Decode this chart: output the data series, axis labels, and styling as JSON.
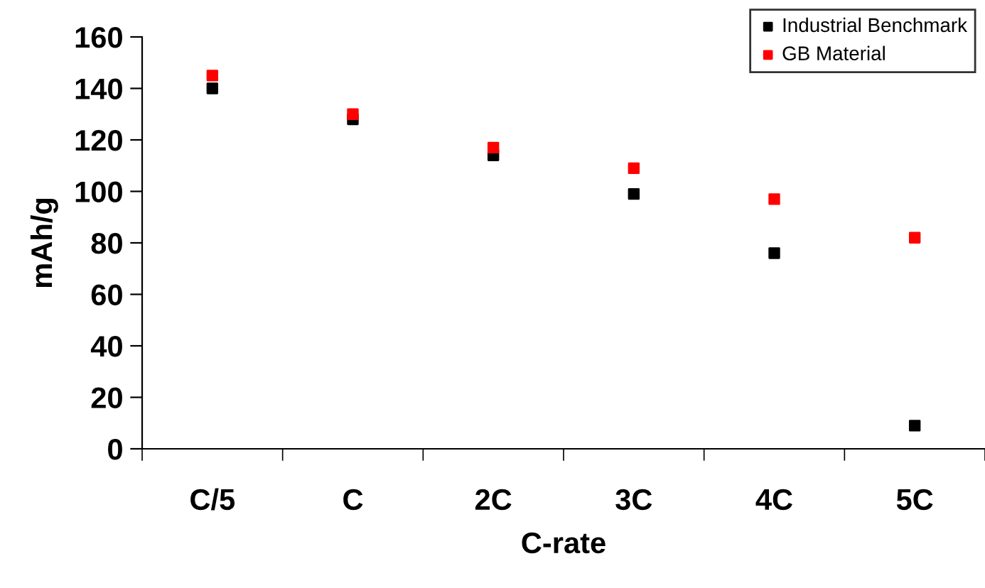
{
  "chart_data": {
    "type": "scatter",
    "xlabel": "C-rate",
    "ylabel": "mAh/g",
    "categories": [
      "C/5",
      "C",
      "2C",
      "3C",
      "4C",
      "5C"
    ],
    "series": [
      {
        "name": "Industrial Benchmark",
        "color": "#000000",
        "values": [
          140,
          128,
          114,
          99,
          76,
          9
        ]
      },
      {
        "name": "GB Material",
        "color": "#ff0000",
        "values": [
          145,
          130,
          117,
          109,
          97,
          82
        ]
      }
    ],
    "ylim": [
      0,
      160
    ],
    "yticks": [
      0,
      20,
      40,
      60,
      80,
      100,
      120,
      140,
      160
    ],
    "marker": "square",
    "grid": false,
    "legend": "top right"
  }
}
